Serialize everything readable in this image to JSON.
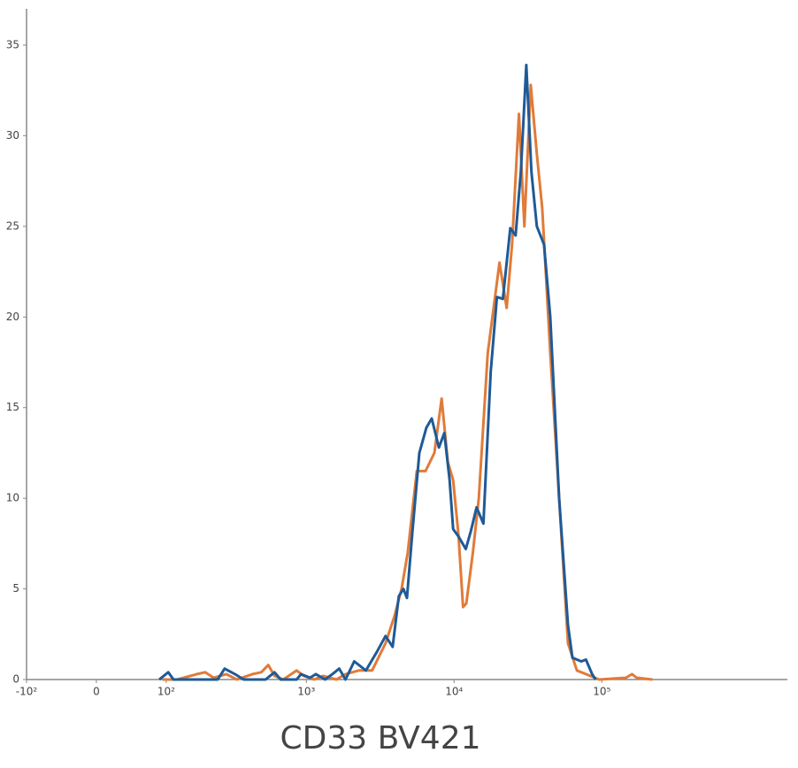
{
  "chart_data": {
    "type": "line",
    "x_label": "CD33 BV421",
    "x_scale": "biexponential",
    "xlim": [
      -100,
      1800000
    ],
    "ylim": [
      0,
      37
    ],
    "xticks": [
      {
        "value": -100,
        "label": "-10²"
      },
      0,
      {
        "value": 100,
        "label": "10²"
      },
      {
        "value": 1000,
        "label": "10³"
      },
      {
        "value": 10000,
        "label": "10⁴"
      },
      {
        "value": 100000,
        "label": "10⁵"
      }
    ],
    "yticks": [
      0,
      5,
      10,
      15,
      20,
      25,
      30,
      35
    ],
    "series": [
      {
        "color": "#e07b39",
        "x": [
          93,
          123,
          174,
          200,
          230,
          283,
          334,
          430,
          493,
          551,
          607,
          697,
          859,
          960,
          1130,
          1300,
          1600,
          1840,
          2270,
          2790,
          3440,
          3950,
          4410,
          4860,
          5590,
          6410,
          7360,
          8240,
          9080,
          9860,
          10700,
          11500,
          12100,
          13400,
          14700,
          16900,
          20300,
          22700,
          24700,
          27500,
          29900,
          33000,
          36300,
          39500,
          44800,
          51400,
          59000,
          67800,
          78000,
          96000,
          145600,
          160000,
          172000,
          220000
        ],
        "values": [
          0,
          0,
          0.3,
          0.4,
          0.1,
          0.3,
          0,
          0.3,
          0.4,
          0.8,
          0.2,
          0,
          0.5,
          0.2,
          0,
          0.2,
          0,
          0.3,
          0.5,
          0.5,
          2,
          3.5,
          5,
          7,
          11.5,
          11.5,
          12.5,
          15.5,
          12,
          11,
          8,
          4,
          4.2,
          7,
          10,
          18,
          23,
          20.5,
          24,
          31.2,
          25,
          32.8,
          29,
          26,
          18,
          10,
          2,
          0.5,
          0.3,
          0,
          0.1,
          0.3,
          0.1,
          0
        ]
      },
      {
        "color": "#1f5a96",
        "x": [
          87,
          104,
          115,
          246,
          275,
          325,
          373,
          528,
          607,
          668,
          859,
          920,
          1060,
          1160,
          1340,
          1500,
          1670,
          1840,
          2110,
          2530,
          2990,
          3440,
          3840,
          4230,
          4540,
          4800,
          5210,
          5820,
          6500,
          7060,
          7900,
          8590,
          9330,
          9860,
          10700,
          12000,
          13000,
          14200,
          15800,
          17700,
          19500,
          21400,
          24000,
          26100,
          28300,
          30800,
          33400,
          36300,
          40600,
          44800,
          51400,
          59000,
          63200,
          72600,
          78000,
          85900,
          90800
        ],
        "values": [
          0,
          0.4,
          0,
          0,
          0.6,
          0.3,
          0,
          0,
          0.4,
          0,
          0,
          0.3,
          0.1,
          0.3,
          0,
          0.3,
          0.6,
          0,
          1,
          0.5,
          1.5,
          2.4,
          1.8,
          4.6,
          5,
          4.5,
          8,
          12.5,
          13.9,
          14.4,
          12.8,
          13.6,
          11,
          8.3,
          7.9,
          7.2,
          8.2,
          9.5,
          8.6,
          17,
          21.1,
          21,
          24.9,
          24.5,
          28,
          33.9,
          28,
          25,
          24,
          20,
          10,
          3,
          1.2,
          1,
          1.1,
          0.3,
          0
        ]
      }
    ]
  }
}
